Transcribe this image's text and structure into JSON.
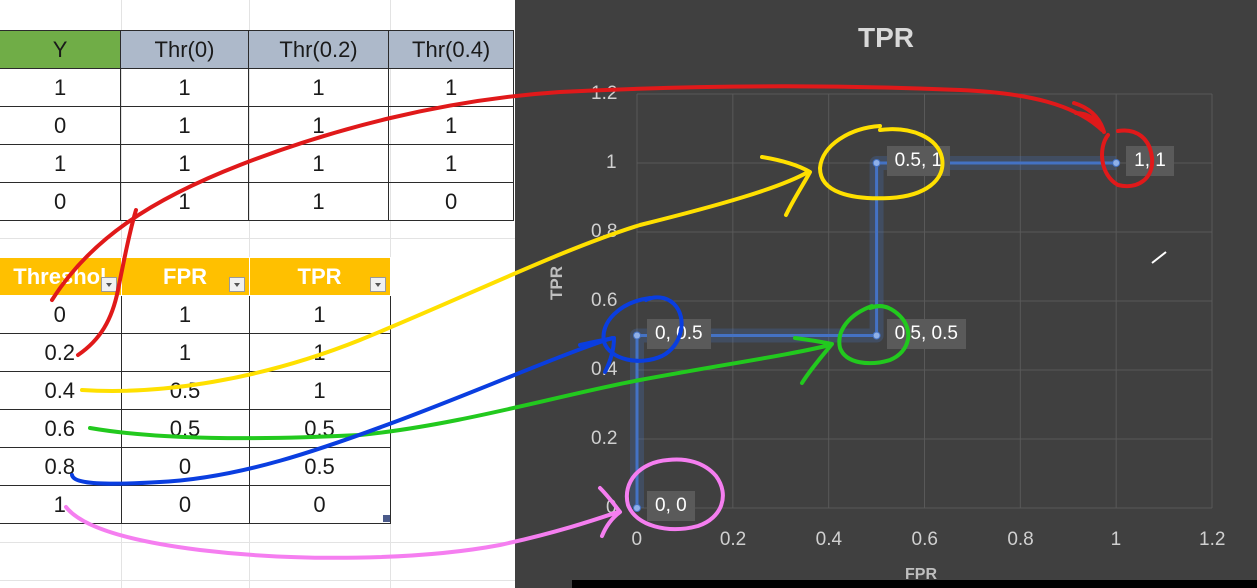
{
  "table1": {
    "headers": [
      "Y",
      "Thr(0)",
      "Thr(0.2)",
      "Thr(0.4)"
    ],
    "rows": [
      [
        "1",
        "1",
        "1",
        "1"
      ],
      [
        "0",
        "1",
        "1",
        "1"
      ],
      [
        "1",
        "1",
        "1",
        "1"
      ],
      [
        "0",
        "1",
        "1",
        "0"
      ]
    ]
  },
  "table2": {
    "headers": [
      "Threshol",
      "FPR",
      "TPR"
    ],
    "rows": [
      [
        "0",
        "1",
        "1"
      ],
      [
        "0.2",
        "1",
        "1"
      ],
      [
        "0.4",
        "0.5",
        "1"
      ],
      [
        "0.6",
        "0.5",
        "0.5"
      ],
      [
        "0.8",
        "0",
        "0.5"
      ],
      [
        "1",
        "0",
        "0"
      ]
    ]
  },
  "chart_data": {
    "type": "line",
    "title": "TPR",
    "xlabel": "FPR",
    "ylabel": "TPR",
    "xlim": [
      0,
      1.2
    ],
    "ylim": [
      0,
      1.2
    ],
    "xticks": [
      "0",
      "0.2",
      "0.4",
      "0.6",
      "0.8",
      "1",
      "1.2"
    ],
    "yticks": [
      "0",
      "0.2",
      "0.4",
      "0.6",
      "0.8",
      "1",
      "1.2"
    ],
    "grid": true,
    "series": [
      {
        "points": [
          [
            0,
            0
          ],
          [
            0,
            0.5
          ],
          [
            0.5,
            0.5
          ],
          [
            0.5,
            1
          ],
          [
            1,
            1
          ]
        ],
        "labels": [
          "0, 0",
          "0, 0.5",
          "0.5, 0.5",
          "0.5, 1",
          "1, 1"
        ]
      }
    ],
    "colors": {
      "line": "#4472c4",
      "background": "#404040",
      "grid": "#595959"
    }
  },
  "annotations": {
    "colors": [
      "#e0191a",
      "#ffe000",
      "#22c91e",
      "#0a3ee0",
      "#f57ef0"
    ]
  }
}
